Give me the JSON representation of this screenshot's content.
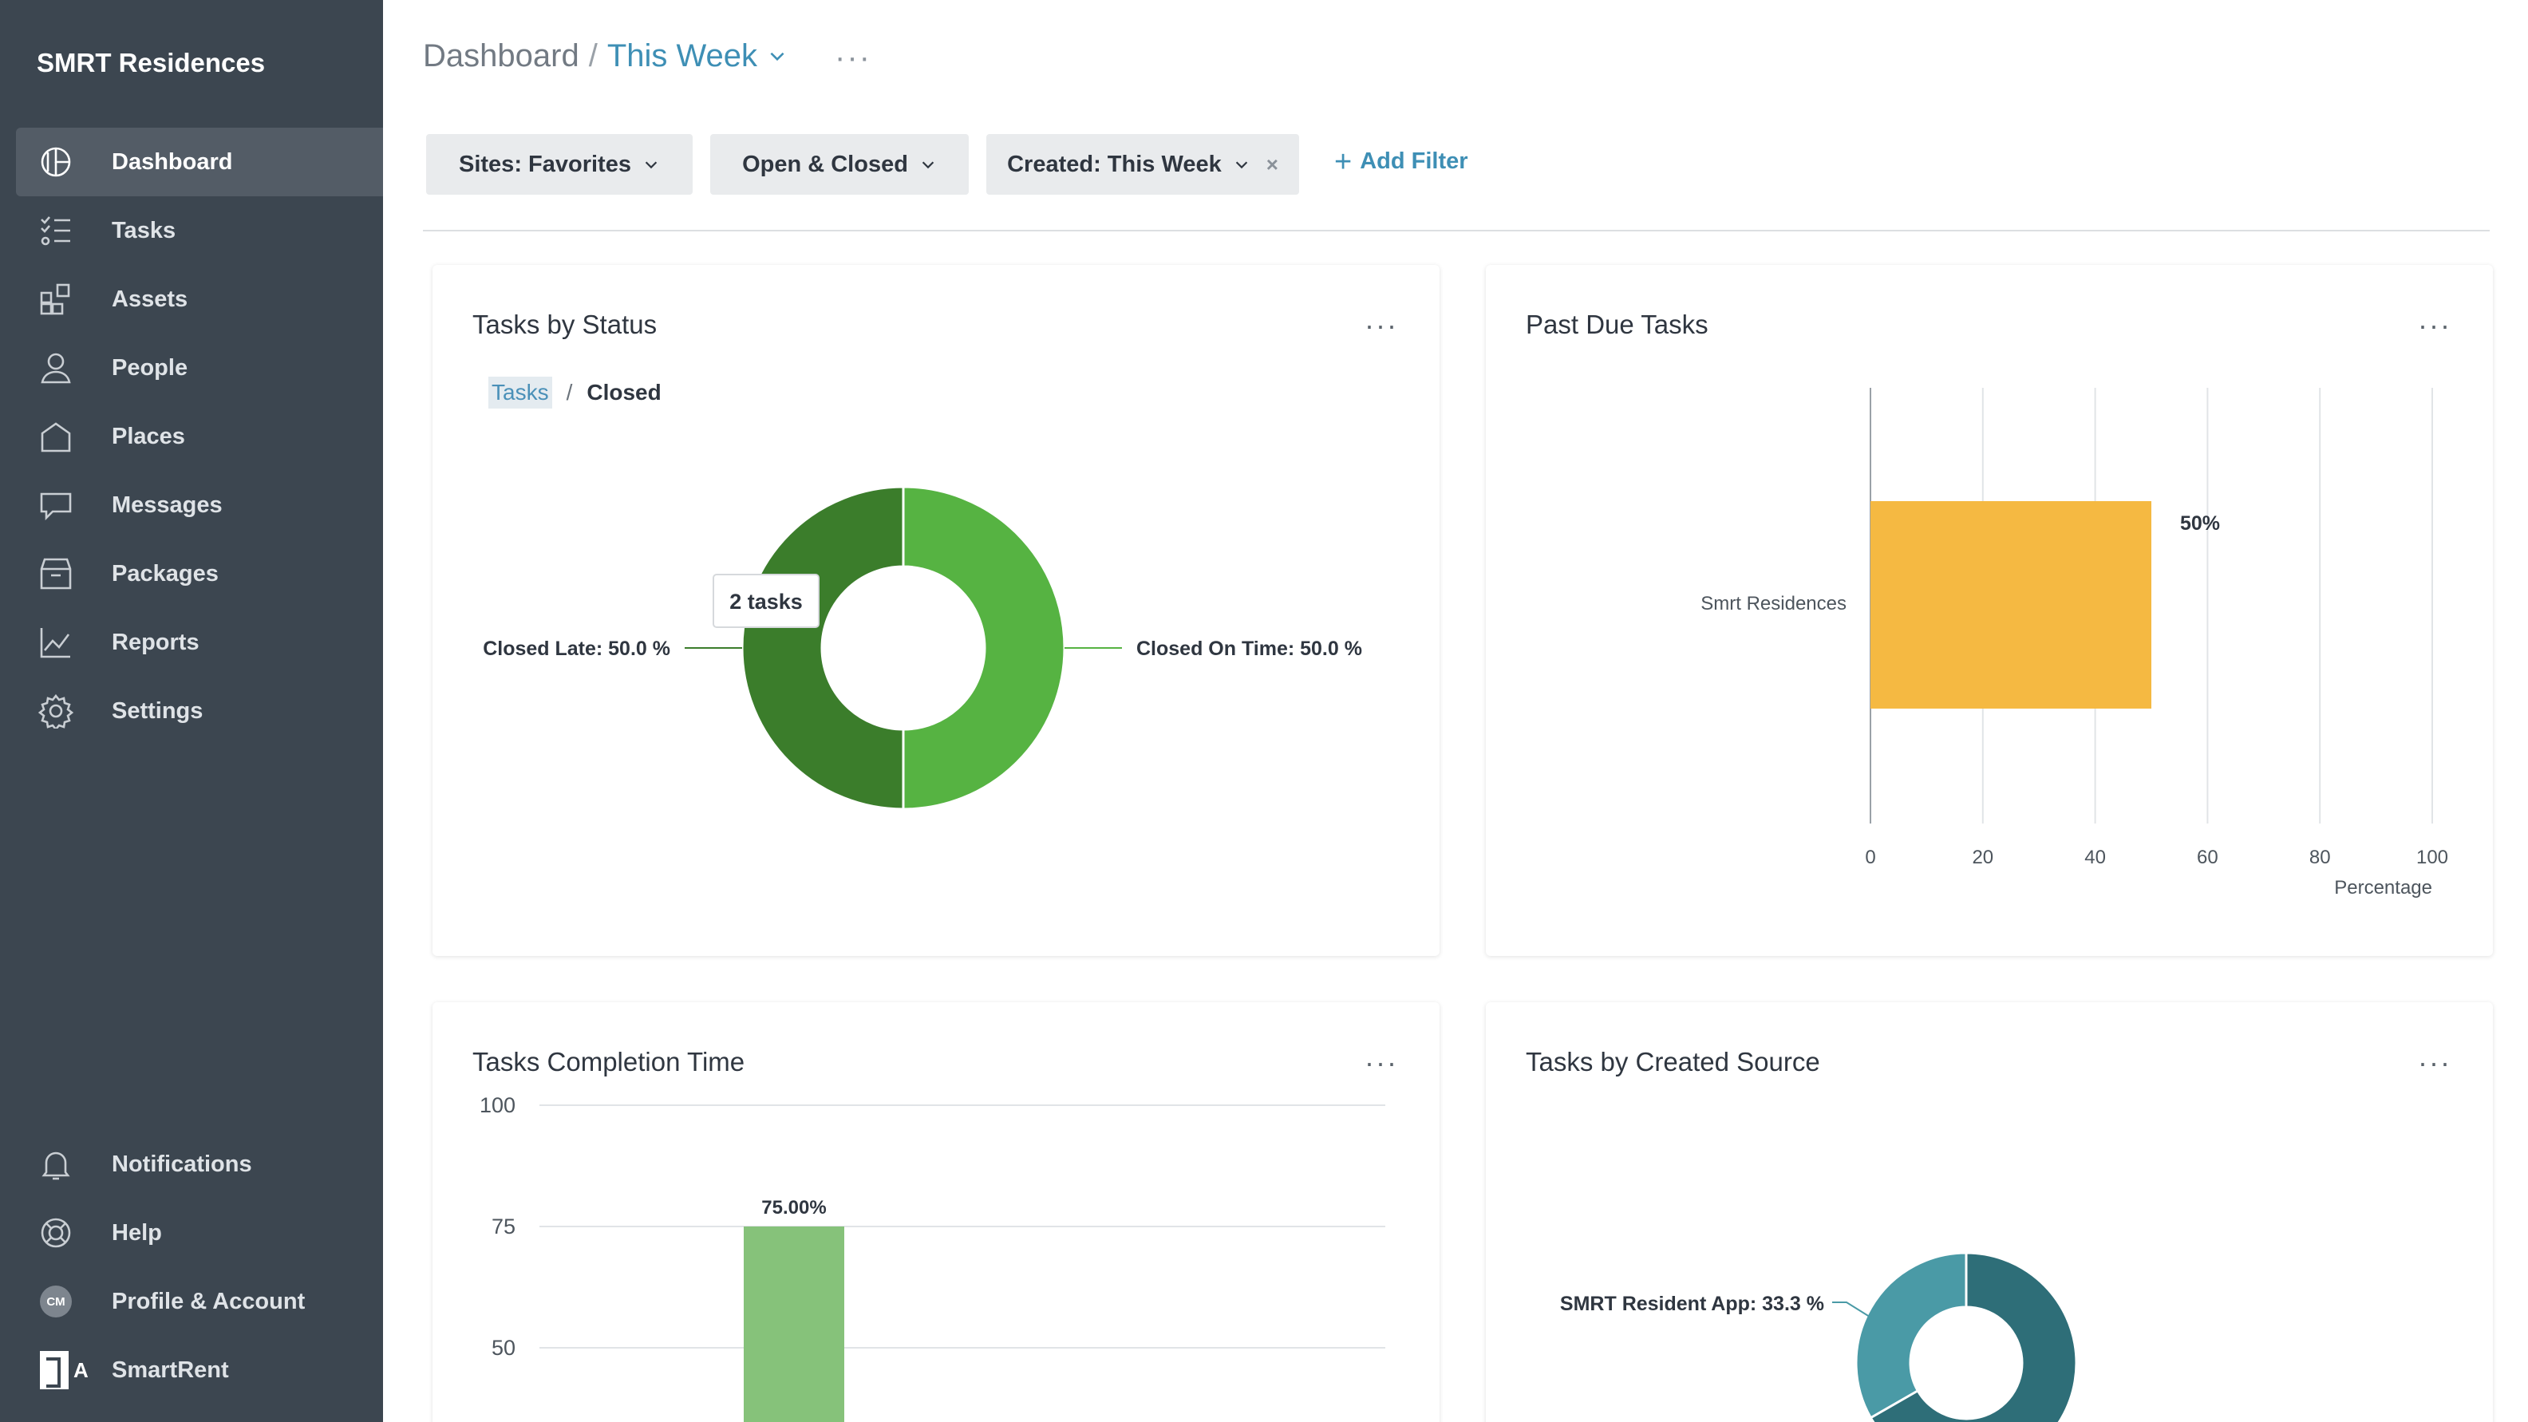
{
  "sidebar": {
    "brand": "SMRT Residences",
    "items": [
      {
        "label": "Dashboard",
        "icon": "dashboard-icon"
      },
      {
        "label": "Tasks",
        "icon": "tasks-icon"
      },
      {
        "label": "Assets",
        "icon": "assets-icon"
      },
      {
        "label": "People",
        "icon": "person-icon"
      },
      {
        "label": "Places",
        "icon": "house-icon"
      },
      {
        "label": "Messages",
        "icon": "chat-bubble-icon"
      },
      {
        "label": "Packages",
        "icon": "package-icon"
      },
      {
        "label": "Reports",
        "icon": "line-chart-icon"
      },
      {
        "label": "Settings",
        "icon": "gear-icon"
      }
    ],
    "bottom": [
      {
        "label": "Notifications",
        "icon": "bell-icon"
      },
      {
        "label": "Help",
        "icon": "lifebuoy-icon"
      },
      {
        "label": "Profile & Account",
        "icon": "avatar-icon",
        "initials": "CM"
      },
      {
        "label": "SmartRent",
        "icon": "smartrent-logo-icon",
        "logo_letter": "A"
      }
    ]
  },
  "header": {
    "root": "Dashboard",
    "separator": "/",
    "current": "This Week",
    "more": "···"
  },
  "filters": [
    {
      "label": "Sites: Favorites"
    },
    {
      "label": "Open & Closed"
    },
    {
      "label": "Created: This Week",
      "clear": "×"
    }
  ],
  "add_filter": {
    "plus": "+",
    "label": "Add Filter"
  },
  "cards": {
    "status": {
      "title": "Tasks by Status",
      "breadcrumb_link": "Tasks",
      "breadcrumb_sep": "/",
      "breadcrumb_current": "Closed",
      "tooltip": "2 tasks",
      "more": "···"
    },
    "past_due": {
      "title": "Past Due Tasks",
      "more": "···"
    },
    "completion": {
      "title": "Tasks Completion Time",
      "more": "···"
    },
    "source": {
      "title": "Tasks by Created Source",
      "more": "···"
    }
  },
  "chart_data": [
    {
      "type": "pie",
      "title": "Tasks by Status",
      "donut": true,
      "slices": [
        {
          "label": "Closed On Time: 50.0 %",
          "value": 50.0,
          "color": "#56b342"
        },
        {
          "label": "Closed Late: 50.0 %",
          "value": 50.0,
          "color": "#3b7d2b"
        }
      ]
    },
    {
      "type": "bar",
      "orientation": "horizontal",
      "title": "Past Due Tasks",
      "categories": [
        "Smrt Residences"
      ],
      "values": [
        50
      ],
      "data_labels": [
        "50%"
      ],
      "xlabel": "Percentage",
      "xlim": [
        0,
        100
      ],
      "xticks": [
        0,
        20,
        40,
        60,
        80,
        100
      ],
      "color": "#f5b942",
      "grid": true
    },
    {
      "type": "bar",
      "title": "Tasks Completion Time",
      "categories": [
        ""
      ],
      "values": [
        75.0
      ],
      "data_labels": [
        "75.00%"
      ],
      "yticks": [
        100,
        75,
        50
      ],
      "ylim_visible": [
        50,
        100
      ],
      "color": "#86c27a",
      "grid": true
    },
    {
      "type": "pie",
      "title": "Tasks by Created Source",
      "donut": true,
      "slices": [
        {
          "label": "SMRT Resident App: 33.3 %",
          "value": 33.3,
          "color": "#4a9aa6"
        },
        {
          "label": "",
          "value": 66.7,
          "color": "#2e6e78"
        }
      ]
    }
  ]
}
